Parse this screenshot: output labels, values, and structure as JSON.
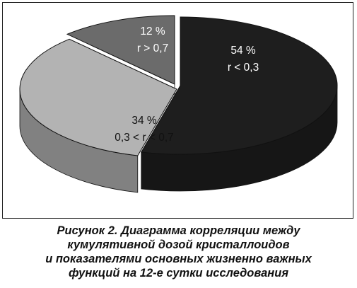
{
  "chart_data": {
    "type": "pie",
    "categories": [
      "r < 0,3",
      "0,3 < r < 0,7",
      "r > 0,7"
    ],
    "values": [
      54,
      34,
      12
    ],
    "labels": [
      {
        "percent": "54 %",
        "range": "r < 0,3"
      },
      {
        "percent": "34 %",
        "range": "0,3 < r < 0,7"
      },
      {
        "percent": "12 %",
        "range": "r > 0,7"
      }
    ],
    "colors": [
      "#1e1e1e",
      "#b3b3b3",
      "#6b6b6b"
    ],
    "style": "3d",
    "title": ""
  },
  "caption": {
    "lines": [
      "Рисунок 2. Диаграмма корреляции между",
      "кумулятивной дозой кристаллоидов",
      "и показателями основных жизненно важных",
      "функций на 12-е сутки исследования"
    ]
  }
}
